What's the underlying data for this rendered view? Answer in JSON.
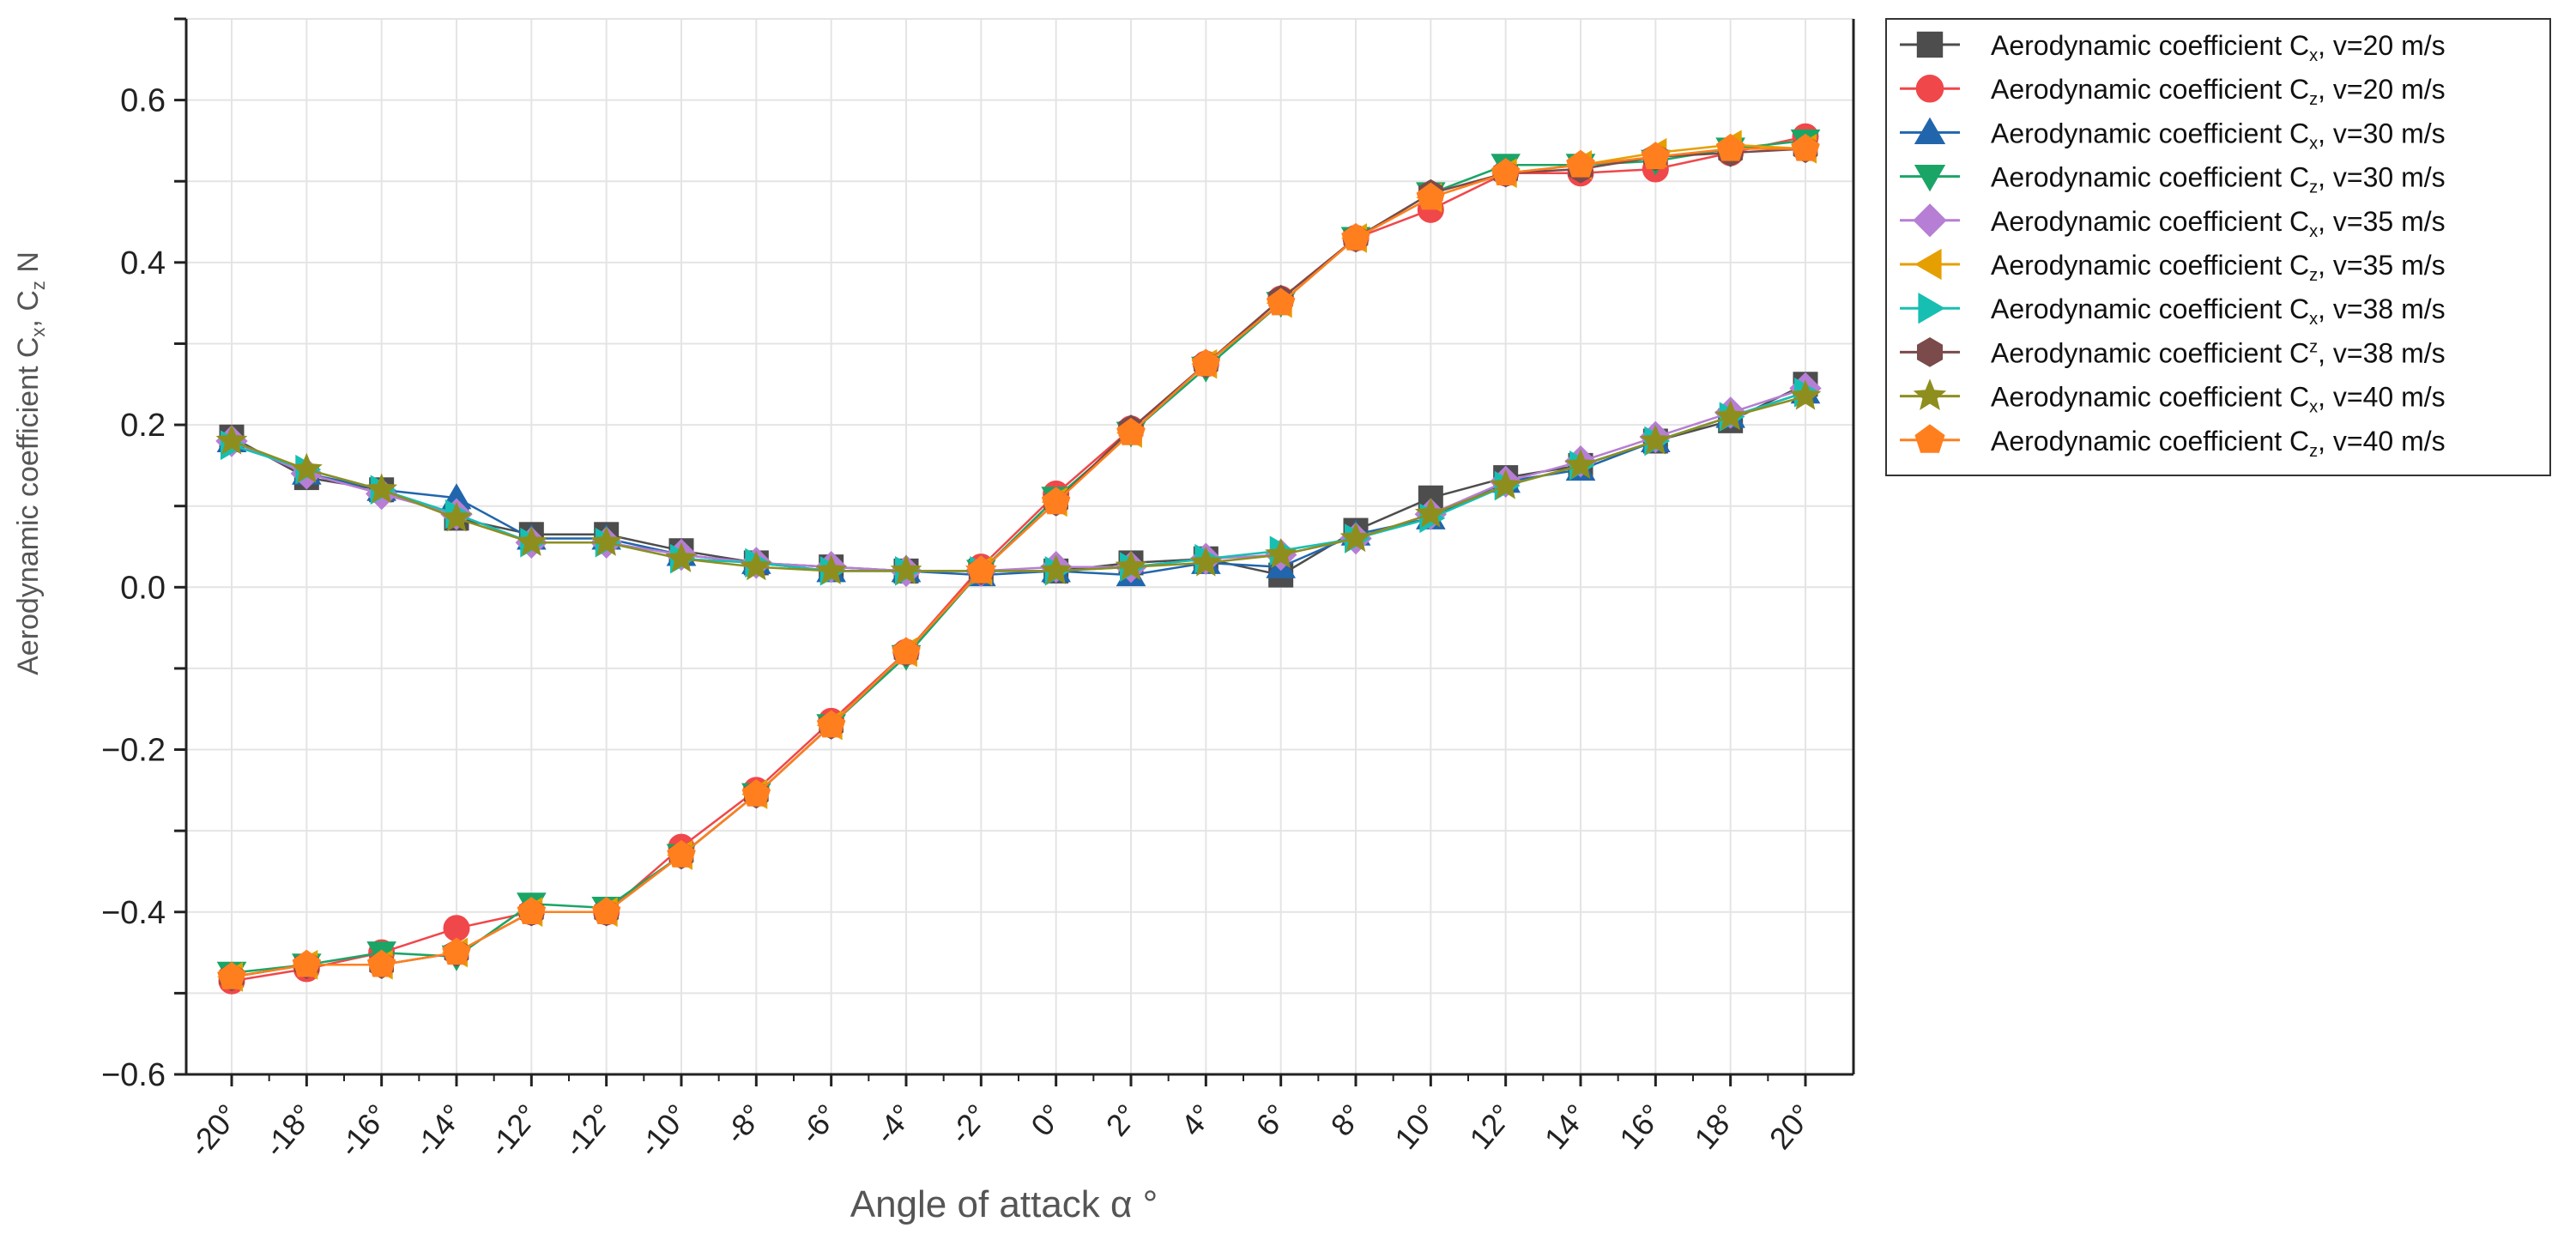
{
  "chart_data": {
    "type": "line",
    "xlabel": "Angle of attack  α °",
    "ylabel": "Aerodynamic coefficient C",
    "ylabel_parts": {
      "base": "Aerodynamic coefficient C",
      "sub1": "x",
      "mid": ", C",
      "sub2": "z",
      "tail": "  N"
    },
    "ylim": [
      -0.6,
      0.7
    ],
    "yticks": [
      -0.6,
      -0.4,
      -0.2,
      0.0,
      0.2,
      0.4,
      0.6
    ],
    "ytick_labels": [
      "−0.6",
      "−0.4",
      "−0.2",
      "0.0",
      "0.2",
      "0.4",
      "0.6"
    ],
    "x_categories": [
      "-20°",
      "-18°",
      "-16°",
      "-14°",
      "-12°",
      "-12°",
      "-10°",
      "-8°",
      "-6°",
      "-4°",
      "-2°",
      "0°",
      "2°",
      "4°",
      "6°",
      "8°",
      "10°",
      "12°",
      "14°",
      "16°",
      "18°",
      "20°"
    ],
    "grid": true,
    "legend_position": "outside-right-top",
    "series": [
      {
        "name": "Aerodynamic coefficient C",
        "sub": "x",
        "sup": "",
        "suffix": ", v=20 m/s",
        "marker": "square",
        "color": "#4d4d4d",
        "values": [
          0.185,
          0.135,
          0.12,
          0.085,
          0.065,
          0.065,
          0.045,
          0.03,
          0.025,
          0.02,
          0.02,
          0.02,
          0.03,
          0.035,
          0.015,
          0.07,
          0.11,
          0.135,
          0.15,
          0.18,
          0.205,
          0.25
        ]
      },
      {
        "name": "Aerodynamic coefficient C",
        "sub": "z",
        "sup": "",
        "suffix": ", v=20 m/s",
        "marker": "circle",
        "color": "#f0474a",
        "values": [
          -0.485,
          -0.47,
          -0.45,
          -0.42,
          -0.4,
          -0.4,
          -0.32,
          -0.25,
          -0.165,
          -0.08,
          0.025,
          0.115,
          0.195,
          0.275,
          0.355,
          0.43,
          0.465,
          0.51,
          0.51,
          0.515,
          0.535,
          0.555
        ]
      },
      {
        "name": "Aerodynamic coefficient C",
        "sub": "x",
        "sup": "",
        "suffix": ", v=30 m/s",
        "marker": "triangle-up",
        "color": "#2166ac",
        "values": [
          0.18,
          0.14,
          0.12,
          0.11,
          0.06,
          0.06,
          0.04,
          0.03,
          0.02,
          0.02,
          0.015,
          0.02,
          0.015,
          0.03,
          0.025,
          0.065,
          0.085,
          0.13,
          0.145,
          0.18,
          0.21,
          0.24
        ]
      },
      {
        "name": "Aerodynamic coefficient C",
        "sub": "z",
        "sup": "",
        "suffix": ", v=30 m/s",
        "marker": "triangle-down",
        "color": "#1aa567",
        "values": [
          -0.475,
          -0.465,
          -0.45,
          -0.455,
          -0.39,
          -0.395,
          -0.33,
          -0.255,
          -0.17,
          -0.085,
          0.02,
          0.11,
          0.19,
          0.27,
          0.35,
          0.43,
          0.485,
          0.52,
          0.52,
          0.525,
          0.54,
          0.55
        ]
      },
      {
        "name": "Aerodynamic coefficient C",
        "sub": "x",
        "sup": "",
        "suffix": ", v=35 m/s",
        "marker": "diamond",
        "color": "#b67ed4",
        "values": [
          0.18,
          0.14,
          0.115,
          0.09,
          0.055,
          0.055,
          0.04,
          0.03,
          0.025,
          0.02,
          0.02,
          0.025,
          0.025,
          0.035,
          0.04,
          0.06,
          0.09,
          0.13,
          0.155,
          0.185,
          0.215,
          0.245
        ]
      },
      {
        "name": "Aerodynamic coefficient C",
        "sub": "z",
        "sup": "",
        "suffix": ", v=35 m/s",
        "marker": "triangle-left",
        "color": "#e69f00",
        "values": [
          -0.48,
          -0.465,
          -0.465,
          -0.45,
          -0.4,
          -0.4,
          -0.33,
          -0.255,
          -0.17,
          -0.08,
          0.02,
          0.105,
          0.19,
          0.275,
          0.35,
          0.43,
          0.48,
          0.51,
          0.52,
          0.535,
          0.545,
          0.54
        ]
      },
      {
        "name": "Aerodynamic coefficient C",
        "sub": "x",
        "sup": "",
        "suffix": ", v=38 m/s",
        "marker": "triangle-right",
        "color": "#17bfb2",
        "values": [
          0.175,
          0.145,
          0.12,
          0.09,
          0.055,
          0.055,
          0.035,
          0.03,
          0.02,
          0.02,
          0.02,
          0.02,
          0.025,
          0.035,
          0.045,
          0.06,
          0.085,
          0.125,
          0.15,
          0.18,
          0.21,
          0.24
        ]
      },
      {
        "name": "Aerodynamic coefficient C",
        "sub": "",
        "sup": "z",
        "suffix": ", v=38 m/s",
        "marker": "hexagon",
        "color": "#7b4a4a",
        "values": [
          -0.48,
          -0.465,
          -0.465,
          -0.45,
          -0.4,
          -0.4,
          -0.33,
          -0.255,
          -0.17,
          -0.08,
          0.02,
          0.105,
          0.195,
          0.275,
          0.355,
          0.43,
          0.485,
          0.51,
          0.515,
          0.53,
          0.535,
          0.54
        ]
      },
      {
        "name": "Aerodynamic coefficient C",
        "sub": "x",
        "sup": "",
        "suffix": ", v=40 m/s",
        "marker": "star",
        "color": "#8e8e1f",
        "values": [
          0.18,
          0.145,
          0.12,
          0.085,
          0.055,
          0.055,
          0.035,
          0.025,
          0.02,
          0.02,
          0.02,
          0.02,
          0.025,
          0.03,
          0.04,
          0.06,
          0.09,
          0.125,
          0.15,
          0.18,
          0.21,
          0.235
        ]
      },
      {
        "name": "Aerodynamic coefficient C",
        "sub": "z",
        "sup": "",
        "suffix": ", v=40 m/s",
        "marker": "pentagon",
        "color": "#ff7f1f",
        "values": [
          -0.48,
          -0.465,
          -0.465,
          -0.45,
          -0.4,
          -0.4,
          -0.33,
          -0.255,
          -0.17,
          -0.08,
          0.02,
          0.105,
          0.19,
          0.275,
          0.35,
          0.43,
          0.48,
          0.51,
          0.52,
          0.53,
          0.54,
          0.54
        ]
      }
    ]
  }
}
